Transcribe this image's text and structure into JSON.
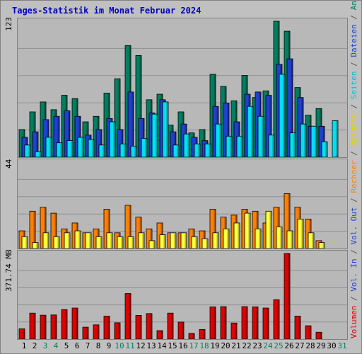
{
  "title": "Tages-Statistik im Monat Februar 2024",
  "panels": {
    "top": {
      "ymax_label": "123"
    },
    "mid": {
      "ymax_label": "44"
    },
    "bot": {
      "ymax_label": "371.74 MB"
    }
  },
  "legend_right": [
    {
      "text": "Volumen",
      "color": "#e00000"
    },
    {
      "text": " / ",
      "color": "#555555"
    },
    {
      "text": "Vol. In",
      "color": "#2040d0"
    },
    {
      "text": " / ",
      "color": "#555555"
    },
    {
      "text": "Vol. Out",
      "color": "#2040d0"
    },
    {
      "text": " / ",
      "color": "#555555"
    },
    {
      "text": "Rechner",
      "color": "#ff8000"
    },
    {
      "text": " / ",
      "color": "#555555"
    },
    {
      "text": "Besuche",
      "color": "#e8d000"
    },
    {
      "text": " / ",
      "color": "#555555"
    },
    {
      "text": "Seiten",
      "color": "#00c0e0"
    },
    {
      "text": " / ",
      "color": "#555555"
    },
    {
      "text": "Dateien",
      "color": "#2040d0"
    },
    {
      "text": " / ",
      "color": "#555555"
    },
    {
      "text": "Anfragen",
      "color": "#008060"
    }
  ],
  "x_labels": [
    {
      "d": "1",
      "color": "#000000"
    },
    {
      "d": "2",
      "color": "#000000"
    },
    {
      "d": "3",
      "color": "#008060"
    },
    {
      "d": "4",
      "color": "#008060"
    },
    {
      "d": "5",
      "color": "#000000"
    },
    {
      "d": "6",
      "color": "#000000"
    },
    {
      "d": "7",
      "color": "#000000"
    },
    {
      "d": "8",
      "color": "#000000"
    },
    {
      "d": "9",
      "color": "#000000"
    },
    {
      "d": "10",
      "color": "#008060"
    },
    {
      "d": "11",
      "color": "#008060"
    },
    {
      "d": "12",
      "color": "#000000"
    },
    {
      "d": "13",
      "color": "#000000"
    },
    {
      "d": "14",
      "color": "#000000"
    },
    {
      "d": "15",
      "color": "#000000"
    },
    {
      "d": "16",
      "color": "#000000"
    },
    {
      "d": "17",
      "color": "#008060"
    },
    {
      "d": "18",
      "color": "#008060"
    },
    {
      "d": "19",
      "color": "#000000"
    },
    {
      "d": "20",
      "color": "#000000"
    },
    {
      "d": "21",
      "color": "#000000"
    },
    {
      "d": "22",
      "color": "#000000"
    },
    {
      "d": "23",
      "color": "#000000"
    },
    {
      "d": "24",
      "color": "#008060"
    },
    {
      "d": "25",
      "color": "#008060"
    },
    {
      "d": "26",
      "color": "#000000"
    },
    {
      "d": "27",
      "color": "#000000"
    },
    {
      "d": "28",
      "color": "#000000"
    },
    {
      "d": "29",
      "color": "#000000"
    },
    {
      "d": "30",
      "color": "#000000"
    },
    {
      "d": "31",
      "color": "#008060"
    }
  ],
  "chart_data": [
    {
      "type": "bar",
      "categories": [
        "1",
        "2",
        "3",
        "4",
        "5",
        "6",
        "7",
        "8",
        "9",
        "10",
        "11",
        "12",
        "13",
        "14",
        "15",
        "16",
        "17",
        "18",
        "19",
        "20",
        "21",
        "22",
        "23",
        "24",
        "25",
        "26",
        "27",
        "28",
        "29",
        "30",
        "31"
      ],
      "ylim": [
        0,
        123
      ],
      "series": [
        {
          "name": "Anfragen",
          "color": "#008060",
          "values": [
            25,
            41,
            50,
            43,
            56,
            53,
            32,
            37,
            58,
            71,
            101,
            92,
            52,
            57,
            29,
            41,
            22,
            25,
            75,
            64,
            51,
            74,
            54,
            60,
            123,
            114,
            63,
            38,
            44,
            0,
            0
          ]
        },
        {
          "name": "Dateien",
          "color": "#2040d0",
          "values": [
            18,
            23,
            34,
            37,
            42,
            37,
            20,
            25,
            35,
            25,
            59,
            35,
            40,
            52,
            23,
            30,
            18,
            15,
            46,
            49,
            32,
            57,
            59,
            56,
            84,
            89,
            54,
            28,
            28,
            0,
            0
          ]
        },
        {
          "name": "Seiten",
          "color": "#00e0f0",
          "values": [
            11,
            5,
            18,
            13,
            15,
            18,
            16,
            11,
            32,
            12,
            10,
            17,
            39,
            50,
            11,
            21,
            12,
            12,
            30,
            19,
            19,
            46,
            37,
            20,
            75,
            22,
            30,
            28,
            14,
            33,
            0
          ]
        }
      ]
    },
    {
      "type": "bar",
      "categories": [
        "1",
        "2",
        "3",
        "4",
        "5",
        "6",
        "7",
        "8",
        "9",
        "10",
        "11",
        "12",
        "13",
        "14",
        "15",
        "16",
        "17",
        "18",
        "19",
        "20",
        "21",
        "22",
        "23",
        "24",
        "25",
        "26",
        "27",
        "28",
        "29",
        "30",
        "31"
      ],
      "ylim": [
        0,
        44
      ],
      "series": [
        {
          "name": "Rechner",
          "color": "#ff8000",
          "values": [
            9,
            19,
            21,
            18,
            10,
            13,
            8,
            10,
            20,
            8,
            22,
            16,
            10,
            13,
            8,
            8,
            10,
            9,
            20,
            16,
            17,
            20,
            19,
            13,
            21,
            28,
            21,
            15,
            4,
            0,
            0
          ]
        },
        {
          "name": "Besuche",
          "color": "#ffff40",
          "values": [
            6,
            3,
            8,
            6,
            8,
            9,
            8,
            6,
            8,
            6,
            6,
            8,
            4,
            7,
            8,
            8,
            6,
            5,
            8,
            10,
            13,
            18,
            10,
            19,
            11,
            9,
            15,
            8,
            3,
            0,
            0
          ]
        }
      ]
    },
    {
      "type": "bar",
      "categories": [
        "1",
        "2",
        "3",
        "4",
        "5",
        "6",
        "7",
        "8",
        "9",
        "10",
        "11",
        "12",
        "13",
        "14",
        "15",
        "16",
        "17",
        "18",
        "19",
        "20",
        "21",
        "22",
        "23",
        "24",
        "25",
        "26",
        "27",
        "28",
        "29",
        "30",
        "31"
      ],
      "ylim": [
        0,
        371.74
      ],
      "series": [
        {
          "name": "Volumen",
          "color": "#e00000",
          "values": [
            45,
            113,
            104,
            105,
            128,
            135,
            52,
            62,
            100,
            71,
            198,
            103,
            111,
            37,
            113,
            74,
            25,
            42,
            140,
            141,
            70,
            141,
            140,
            135,
            171,
            371.74,
            100,
            58,
            30,
            0,
            0
          ]
        }
      ]
    }
  ]
}
